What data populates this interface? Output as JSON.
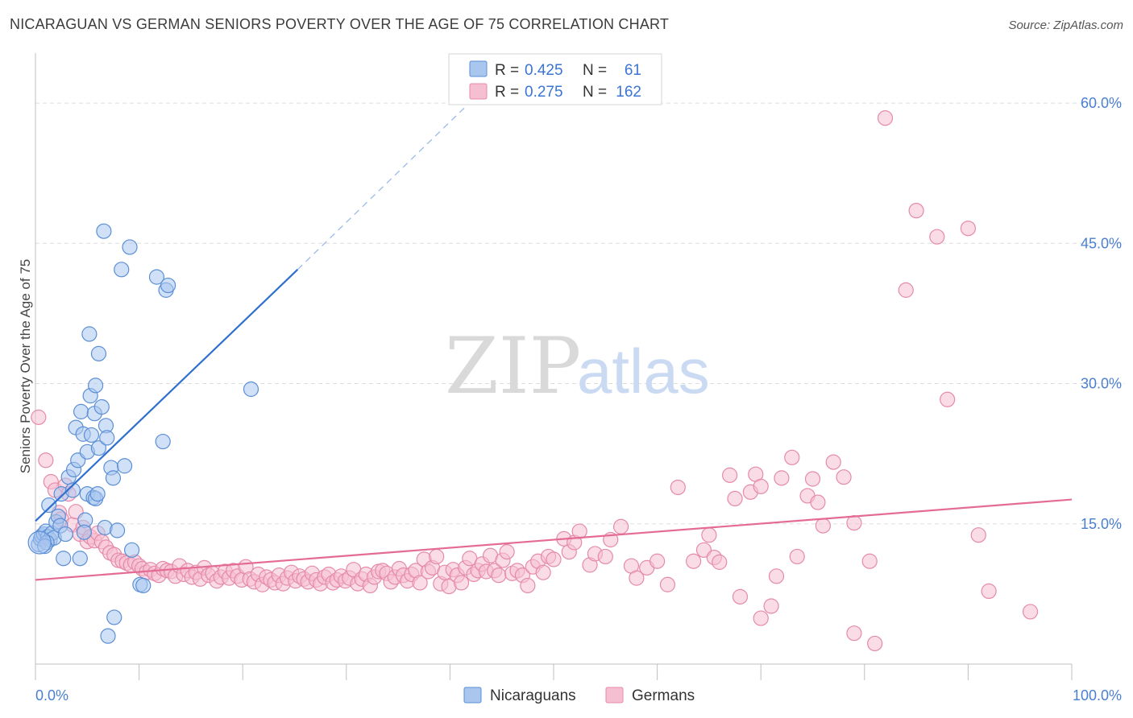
{
  "title": "NICARAGUAN VS GERMAN SENIORS POVERTY OVER THE AGE OF 75 CORRELATION CHART",
  "source": "Source: ZipAtlas.com",
  "watermark": {
    "zip": "ZIP",
    "atlas": "atlas"
  },
  "colors": {
    "blue_fill": "#a9c6ef",
    "blue_stroke": "#5b8fd6",
    "blue_line": "#2f6fcf",
    "pink_fill": "#f6bfd1",
    "pink_stroke": "#e58aa9",
    "pink_line": "#e46b95",
    "grid": "#dddddd",
    "tick_text": "#4a7fd0"
  },
  "legend": {
    "r_label": "R =",
    "n_label": "N =",
    "rows": [
      {
        "r": "0.425",
        "n": "61",
        "color": "#a9c6ef",
        "stroke": "#5b8fd6"
      },
      {
        "r": "0.275",
        "n": "162",
        "color": "#f6bfd1",
        "stroke": "#e58aa9"
      }
    ]
  },
  "bottom_legend": [
    "Nicaraguans",
    "Germans"
  ],
  "chart_data": {
    "type": "scatter",
    "title": "NICARAGUAN VS GERMAN SENIORS POVERTY OVER THE AGE OF 75 CORRELATION CHART",
    "xlabel": "",
    "ylabel": "Seniors Poverty Over the Age of 75",
    "xlim": [
      0,
      100
    ],
    "ylim": [
      0,
      65
    ],
    "x_tick_labels": [
      "0.0%",
      "100.0%"
    ],
    "y_ticks": [
      15,
      30,
      45,
      60
    ],
    "y_tick_labels": [
      "15.0%",
      "30.0%",
      "45.0%",
      "60.0%"
    ],
    "grid": true,
    "legend_position": "top-center",
    "series": [
      {
        "name": "Nicaraguans",
        "r": 0.425,
        "n": 61,
        "trend": {
          "x": [
            0,
            25.3
          ],
          "y": [
            15.3,
            42.2
          ],
          "dashed_to": [
            41.4,
            59.5
          ]
        },
        "points": [
          [
            0.3,
            12.8
          ],
          [
            0.5,
            13.4
          ],
          [
            0.6,
            13.7
          ],
          [
            0.8,
            13.9
          ],
          [
            1.0,
            14.2
          ],
          [
            1.2,
            13.6
          ],
          [
            1.4,
            13.3
          ],
          [
            1.6,
            14.0
          ],
          [
            1.8,
            13.5
          ],
          [
            1.3,
            17.0
          ],
          [
            2.0,
            15.2
          ],
          [
            2.2,
            15.8
          ],
          [
            2.4,
            14.8
          ],
          [
            2.5,
            18.2
          ],
          [
            2.7,
            11.3
          ],
          [
            3.2,
            20.0
          ],
          [
            3.6,
            18.6
          ],
          [
            3.7,
            20.8
          ],
          [
            4.1,
            21.8
          ],
          [
            3.9,
            25.3
          ],
          [
            4.3,
            11.3
          ],
          [
            4.4,
            27.0
          ],
          [
            4.6,
            24.6
          ],
          [
            4.8,
            15.4
          ],
          [
            5.0,
            18.2
          ],
          [
            5.0,
            22.7
          ],
          [
            5.2,
            35.3
          ],
          [
            5.3,
            28.7
          ],
          [
            5.4,
            24.5
          ],
          [
            5.6,
            17.8
          ],
          [
            5.7,
            26.8
          ],
          [
            5.8,
            17.7
          ],
          [
            5.8,
            29.8
          ],
          [
            6.0,
            18.2
          ],
          [
            6.1,
            23.1
          ],
          [
            6.1,
            33.2
          ],
          [
            6.4,
            27.5
          ],
          [
            6.6,
            46.3
          ],
          [
            6.7,
            14.6
          ],
          [
            6.8,
            25.5
          ],
          [
            6.9,
            24.2
          ],
          [
            7.0,
            3.0
          ],
          [
            7.3,
            21.0
          ],
          [
            7.6,
            5.0
          ],
          [
            7.5,
            19.9
          ],
          [
            7.9,
            14.3
          ],
          [
            8.6,
            21.2
          ],
          [
            8.3,
            42.2
          ],
          [
            9.1,
            44.6
          ],
          [
            9.3,
            12.2
          ],
          [
            10.1,
            8.5
          ],
          [
            10.4,
            8.4
          ],
          [
            11.7,
            41.4
          ],
          [
            12.3,
            23.8
          ],
          [
            12.6,
            40.0
          ],
          [
            12.8,
            40.5
          ],
          [
            20.8,
            29.4
          ],
          [
            1.1,
            13.0
          ],
          [
            0.9,
            12.6
          ],
          [
            2.9,
            13.9
          ],
          [
            4.7,
            14.1
          ]
        ]
      },
      {
        "name": "Germans",
        "r": 0.275,
        "n": 162,
        "trend": {
          "x": [
            0,
            100
          ],
          "y": [
            9.0,
            17.6
          ]
        },
        "points": [
          [
            0.3,
            26.4
          ],
          [
            1.0,
            21.8
          ],
          [
            1.5,
            19.5
          ],
          [
            1.9,
            18.6
          ],
          [
            2.3,
            16.2
          ],
          [
            2.5,
            15.5
          ],
          [
            2.9,
            19.1
          ],
          [
            3.2,
            18.2
          ],
          [
            3.6,
            14.9
          ],
          [
            3.9,
            16.3
          ],
          [
            4.3,
            13.9
          ],
          [
            4.6,
            14.6
          ],
          [
            5.0,
            13.1
          ],
          [
            5.3,
            13.6
          ],
          [
            5.7,
            13.2
          ],
          [
            6.0,
            14.0
          ],
          [
            6.4,
            13.1
          ],
          [
            6.8,
            12.5
          ],
          [
            7.2,
            11.9
          ],
          [
            7.6,
            11.7
          ],
          [
            8.0,
            11.1
          ],
          [
            8.4,
            11.0
          ],
          [
            8.8,
            10.8
          ],
          [
            9.2,
            10.6
          ],
          [
            9.6,
            10.9
          ],
          [
            10.0,
            10.5
          ],
          [
            10.3,
            10.2
          ],
          [
            10.7,
            9.8
          ],
          [
            11.1,
            10.1
          ],
          [
            11.5,
            9.7
          ],
          [
            11.9,
            9.5
          ],
          [
            12.3,
            10.2
          ],
          [
            12.7,
            10.0
          ],
          [
            13.1,
            9.9
          ],
          [
            13.5,
            9.4
          ],
          [
            13.9,
            10.5
          ],
          [
            14.3,
            9.6
          ],
          [
            14.7,
            10.0
          ],
          [
            15.1,
            9.3
          ],
          [
            15.5,
            9.8
          ],
          [
            15.9,
            9.1
          ],
          [
            16.3,
            10.3
          ],
          [
            16.7,
            9.5
          ],
          [
            17.1,
            9.7
          ],
          [
            17.5,
            8.9
          ],
          [
            17.9,
            9.3
          ],
          [
            18.3,
            9.9
          ],
          [
            18.7,
            9.2
          ],
          [
            19.1,
            10.0
          ],
          [
            19.5,
            9.4
          ],
          [
            19.9,
            9.0
          ],
          [
            20.3,
            10.4
          ],
          [
            20.7,
            9.1
          ],
          [
            21.1,
            8.8
          ],
          [
            21.5,
            9.6
          ],
          [
            21.9,
            8.5
          ],
          [
            22.3,
            9.3
          ],
          [
            22.7,
            9.0
          ],
          [
            23.1,
            8.7
          ],
          [
            23.5,
            9.5
          ],
          [
            23.9,
            8.6
          ],
          [
            24.3,
            9.2
          ],
          [
            24.7,
            9.8
          ],
          [
            25.1,
            8.9
          ],
          [
            25.5,
            9.4
          ],
          [
            25.9,
            9.1
          ],
          [
            26.3,
            8.8
          ],
          [
            26.7,
            9.7
          ],
          [
            27.1,
            9.0
          ],
          [
            27.5,
            8.6
          ],
          [
            27.9,
            9.3
          ],
          [
            28.3,
            9.6
          ],
          [
            28.7,
            8.7
          ],
          [
            29.1,
            9.0
          ],
          [
            29.5,
            9.4
          ],
          [
            29.9,
            8.9
          ],
          [
            30.3,
            9.2
          ],
          [
            30.7,
            10.1
          ],
          [
            31.1,
            8.6
          ],
          [
            31.5,
            9.1
          ],
          [
            31.9,
            9.6
          ],
          [
            32.3,
            8.4
          ],
          [
            32.7,
            9.3
          ],
          [
            33.1,
            9.9
          ],
          [
            33.5,
            10.0
          ],
          [
            33.9,
            9.7
          ],
          [
            34.3,
            8.8
          ],
          [
            34.7,
            9.3
          ],
          [
            35.1,
            10.2
          ],
          [
            35.5,
            9.5
          ],
          [
            35.9,
            8.9
          ],
          [
            36.3,
            9.6
          ],
          [
            36.7,
            10.0
          ],
          [
            37.1,
            8.7
          ],
          [
            37.5,
            11.2
          ],
          [
            37.9,
            9.9
          ],
          [
            38.3,
            10.3
          ],
          [
            38.7,
            11.5
          ],
          [
            39.1,
            8.6
          ],
          [
            39.5,
            9.8
          ],
          [
            39.9,
            8.3
          ],
          [
            40.3,
            10.1
          ],
          [
            40.7,
            9.5
          ],
          [
            41.1,
            8.7
          ],
          [
            41.5,
            10.3
          ],
          [
            41.9,
            11.3
          ],
          [
            42.3,
            9.6
          ],
          [
            42.7,
            10.0
          ],
          [
            43.1,
            10.7
          ],
          [
            43.5,
            9.9
          ],
          [
            43.9,
            11.6
          ],
          [
            44.3,
            10.0
          ],
          [
            44.7,
            9.5
          ],
          [
            45.1,
            11.1
          ],
          [
            45.5,
            12.0
          ],
          [
            46.0,
            9.7
          ],
          [
            46.5,
            10.0
          ],
          [
            47.0,
            9.5
          ],
          [
            47.5,
            8.4
          ],
          [
            48.0,
            10.4
          ],
          [
            48.5,
            11.0
          ],
          [
            49.0,
            9.8
          ],
          [
            49.5,
            11.5
          ],
          [
            50.0,
            11.2
          ],
          [
            51.0,
            13.4
          ],
          [
            51.5,
            12.0
          ],
          [
            52.0,
            13.0
          ],
          [
            52.5,
            14.2
          ],
          [
            53.5,
            10.6
          ],
          [
            54.0,
            11.8
          ],
          [
            55.0,
            11.5
          ],
          [
            55.5,
            13.3
          ],
          [
            56.5,
            14.7
          ],
          [
            57.5,
            10.5
          ],
          [
            58.0,
            9.2
          ],
          [
            59.0,
            10.3
          ],
          [
            60.0,
            11.0
          ],
          [
            61.0,
            8.5
          ],
          [
            62.0,
            18.9
          ],
          [
            63.5,
            11.0
          ],
          [
            64.5,
            12.2
          ],
          [
            65.0,
            13.8
          ],
          [
            65.5,
            11.4
          ],
          [
            66.0,
            10.9
          ],
          [
            67.0,
            20.2
          ],
          [
            68.0,
            7.2
          ],
          [
            67.5,
            17.7
          ],
          [
            69.0,
            18.4
          ],
          [
            69.5,
            20.3
          ],
          [
            70.0,
            19.0
          ],
          [
            71.0,
            6.2
          ],
          [
            71.5,
            9.4
          ],
          [
            72.0,
            19.9
          ],
          [
            73.0,
            22.1
          ],
          [
            73.5,
            11.5
          ],
          [
            74.5,
            18.0
          ],
          [
            75.0,
            19.8
          ],
          [
            75.5,
            17.3
          ],
          [
            76.0,
            14.8
          ],
          [
            77.0,
            21.6
          ],
          [
            78.0,
            20.0
          ],
          [
            79.0,
            15.1
          ],
          [
            80.5,
            11.0
          ],
          [
            81.0,
            2.2
          ],
          [
            82.0,
            58.4
          ],
          [
            84.0,
            40.0
          ],
          [
            85.0,
            48.5
          ],
          [
            87.0,
            45.7
          ],
          [
            88.0,
            28.3
          ],
          [
            90.0,
            46.6
          ],
          [
            91.0,
            13.8
          ],
          [
            92.0,
            7.8
          ],
          [
            96.0,
            5.6
          ],
          [
            70.0,
            4.9
          ],
          [
            79.0,
            3.3
          ]
        ]
      }
    ]
  }
}
